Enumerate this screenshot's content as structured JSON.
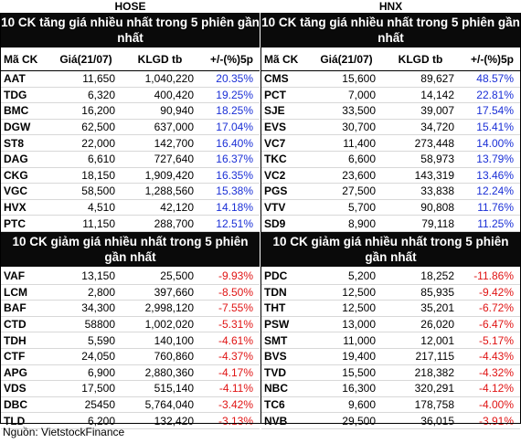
{
  "hose": {
    "title": "HOSE",
    "gainers": {
      "header": "10 CK tăng giá nhiều nhất trong 5 phiên gần nhất",
      "columns": [
        "Mã CK",
        "Giá(21/07)",
        "KLGD tb",
        "+/-(%)5p"
      ],
      "rows": [
        [
          "AAT",
          "11,650",
          "1,040,220",
          "20.35%"
        ],
        [
          "TDG",
          "6,320",
          "400,420",
          "19.25%"
        ],
        [
          "BMC",
          "16,200",
          "90,940",
          "18.25%"
        ],
        [
          "DGW",
          "62,500",
          "637,000",
          "17.04%"
        ],
        [
          "ST8",
          "22,000",
          "142,700",
          "16.40%"
        ],
        [
          "DAG",
          "6,610",
          "727,640",
          "16.37%"
        ],
        [
          "CKG",
          "18,150",
          "1,909,420",
          "16.35%"
        ],
        [
          "VGC",
          "58,500",
          "1,288,560",
          "15.38%"
        ],
        [
          "HVX",
          "4,510",
          "42,120",
          "14.18%"
        ],
        [
          "PTC",
          "11,150",
          "288,700",
          "12.51%"
        ]
      ]
    },
    "losers": {
      "header": "10 CK giảm giá nhiều nhất trong 5 phiên gần nhất",
      "rows": [
        [
          "VAF",
          "13,150",
          "25,500",
          "-9.93%"
        ],
        [
          "LCM",
          "2,800",
          "397,660",
          "-8.50%"
        ],
        [
          "BAF",
          "34,300",
          "2,998,120",
          "-7.55%"
        ],
        [
          "CTD",
          "58800",
          "1,002,020",
          "-5.31%"
        ],
        [
          "TDH",
          "5,590",
          "140,100",
          "-4.61%"
        ],
        [
          "CTF",
          "24,050",
          "760,860",
          "-4.37%"
        ],
        [
          "APG",
          "6,900",
          "2,880,360",
          "-4.17%"
        ],
        [
          "VDS",
          "17,500",
          "515,140",
          "-4.11%"
        ],
        [
          "DBC",
          "25450",
          "5,764,040",
          "-3.42%"
        ],
        [
          "TLD",
          "6,200",
          "132,420",
          "-3.13%"
        ]
      ]
    }
  },
  "hnx": {
    "title": "HNX",
    "gainers": {
      "header": "10 CK tăng giá nhiều nhất trong 5 phiên gần nhất",
      "columns": [
        "Mã CK",
        "Giá(21/07)",
        "KLGD tb",
        "+/-(%)5p"
      ],
      "rows": [
        [
          "CMS",
          "15,600",
          "89,627",
          "48.57%"
        ],
        [
          "PCT",
          "7,000",
          "14,142",
          "22.81%"
        ],
        [
          "SJE",
          "33,500",
          "39,007",
          "17.54%"
        ],
        [
          "EVS",
          "30,700",
          "34,720",
          "15.41%"
        ],
        [
          "VC7",
          "11,400",
          "273,448",
          "14.00%"
        ],
        [
          "TKC",
          "6,600",
          "58,973",
          "13.79%"
        ],
        [
          "VC2",
          "23,600",
          "143,319",
          "13.46%"
        ],
        [
          "PGS",
          "27,500",
          "33,838",
          "12.24%"
        ],
        [
          "VTV",
          "5,700",
          "90,808",
          "11.76%"
        ],
        [
          "SD9",
          "8,900",
          "79,118",
          "11.25%"
        ]
      ]
    },
    "losers": {
      "header": "10 CK giảm giá nhiều nhất trong 5 phiên gần nhất",
      "rows": [
        [
          "PDC",
          "5,200",
          "18,252",
          "-11.86%"
        ],
        [
          "TDN",
          "12,500",
          "85,935",
          "-9.42%"
        ],
        [
          "THT",
          "12,500",
          "35,201",
          "-6.72%"
        ],
        [
          "PSW",
          "13,000",
          "26,020",
          "-6.47%"
        ],
        [
          "SMT",
          "11,000",
          "12,001",
          "-5.17%"
        ],
        [
          "BVS",
          "19,400",
          "217,115",
          "-4.43%"
        ],
        [
          "TVD",
          "15,500",
          "218,382",
          "-4.32%"
        ],
        [
          "NBC",
          "16,300",
          "320,291",
          "-4.12%"
        ],
        [
          "TC6",
          "9,600",
          "178,758",
          "-4.00%"
        ],
        [
          "NVB",
          "29,500",
          "36,015",
          "-3.91%"
        ]
      ]
    }
  },
  "footer": "Nguồn: VietstockFinance",
  "colors": {
    "up": "#1a2fd6",
    "down": "#e01414",
    "header_bg": "#0a0a0a"
  }
}
